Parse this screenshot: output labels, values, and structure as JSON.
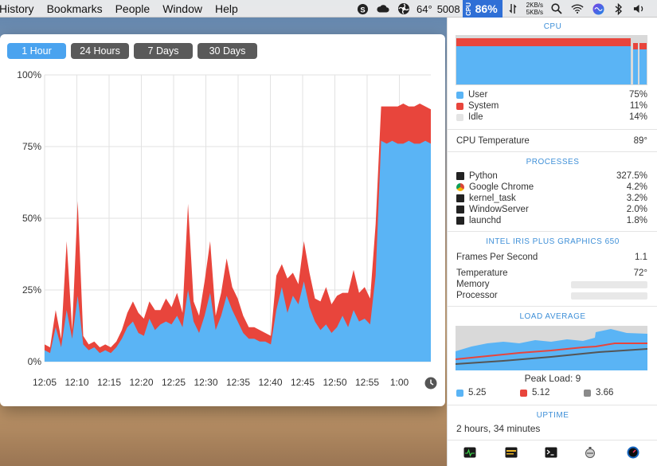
{
  "menubar": {
    "items": [
      "History",
      "Bookmarks",
      "People",
      "Window",
      "Help"
    ],
    "temp": "64°",
    "rpm": "5008",
    "cpu_percent": "86%",
    "cpu_mini": "CPU",
    "net_up": "2KB/s",
    "net_down": "5KB/s",
    "icons": [
      "skype-icon",
      "cloud-icon",
      "fan-icon",
      "cpu-badge",
      "network-arrows-icon",
      "search-icon",
      "wifi-icon",
      "siri-icon",
      "bluetooth-icon",
      "volume-icon"
    ]
  },
  "history": {
    "tabs": [
      {
        "label": "1 Hour",
        "active": true
      },
      {
        "label": "24 Hours",
        "active": false
      },
      {
        "label": "7 Days",
        "active": false
      },
      {
        "label": "30 Days",
        "active": false
      }
    ]
  },
  "chart_data": {
    "type": "area",
    "title": "",
    "xlabel": "",
    "ylabel": "",
    "x_ticks": [
      "12:05",
      "12:10",
      "12:15",
      "12:20",
      "12:25",
      "12:30",
      "12:35",
      "12:40",
      "12:45",
      "12:50",
      "12:55",
      "1:00"
    ],
    "y_ticks": [
      "0%",
      "25%",
      "50%",
      "75%",
      "100%"
    ],
    "ylim": [
      0,
      100
    ],
    "grid": true,
    "stacked": true,
    "colors": {
      "user": "#5ab4f5",
      "system": "#e8453c"
    },
    "series": [
      {
        "key": "user",
        "values": [
          4,
          3,
          12,
          5,
          18,
          8,
          23,
          6,
          4,
          5,
          3,
          4,
          3,
          5,
          8,
          12,
          14,
          10,
          9,
          15,
          11,
          13,
          14,
          13,
          16,
          12,
          25,
          14,
          10,
          16,
          24,
          11,
          16,
          23,
          18,
          14,
          10,
          8,
          8,
          7,
          7,
          6,
          18,
          26,
          17,
          23,
          20,
          28,
          19,
          14,
          11,
          13,
          10,
          12,
          16,
          12,
          18,
          14,
          15,
          13,
          30,
          77,
          76,
          77,
          76,
          76,
          77,
          76,
          76,
          77,
          76
        ]
      },
      {
        "key": "system",
        "values": [
          2,
          2,
          6,
          3,
          24,
          3,
          33,
          3,
          2,
          2,
          2,
          2,
          2,
          2,
          3,
          5,
          7,
          7,
          6,
          6,
          7,
          5,
          8,
          6,
          8,
          5,
          30,
          7,
          6,
          12,
          18,
          5,
          8,
          13,
          8,
          8,
          6,
          4,
          4,
          4,
          3,
          3,
          12,
          8,
          12,
          8,
          7,
          14,
          12,
          8,
          10,
          13,
          10,
          11,
          8,
          12,
          14,
          10,
          11,
          9,
          18,
          12,
          13,
          12,
          13,
          14,
          12,
          13,
          14,
          12,
          12
        ]
      }
    ]
  },
  "panel": {
    "cpu_title": "CPU",
    "cpu_rows": [
      {
        "label": "User",
        "value": "75%",
        "color": "#5ab4f5"
      },
      {
        "label": "System",
        "value": "11%",
        "color": "#e8453c"
      },
      {
        "label": "Idle",
        "value": "14%",
        "color": "#e4e4e4"
      }
    ],
    "cpu_temp_label": "CPU Temperature",
    "cpu_temp_value": "89°",
    "processes_title": "PROCESSES",
    "processes": [
      {
        "name": "Python",
        "value": "327.5%",
        "icon": "terminal-icon"
      },
      {
        "name": "Google Chrome",
        "value": "4.2%",
        "icon": "chrome-icon"
      },
      {
        "name": "kernel_task",
        "value": "3.2%",
        "icon": "terminal-icon"
      },
      {
        "name": "WindowServer",
        "value": "2.0%",
        "icon": "terminal-icon"
      },
      {
        "name": "launchd",
        "value": "1.8%",
        "icon": "terminal-icon"
      }
    ],
    "gpu_title": "INTEL IRIS PLUS GRAPHICS 650",
    "fps_label": "Frames Per Second",
    "fps_value": "1.1",
    "gpu_temp_label": "Temperature",
    "gpu_temp_value": "72°",
    "memory_label": "Memory",
    "processor_label": "Processor",
    "load_title": "LOAD AVERAGE",
    "peak_load": "Peak Load: 9",
    "load_values": [
      {
        "value": "5.25",
        "color": "#5ab4f5"
      },
      {
        "value": "5.12",
        "color": "#e8453c"
      },
      {
        "value": "3.66",
        "color": "#8a8a8a"
      }
    ],
    "uptime_title": "UPTIME",
    "uptime_value": "2 hours, 34 minutes",
    "footer_icons": [
      "activity-monitor-icon",
      "console-icon",
      "terminal-icon",
      "utility-icon",
      "speed-gauge-icon"
    ]
  }
}
